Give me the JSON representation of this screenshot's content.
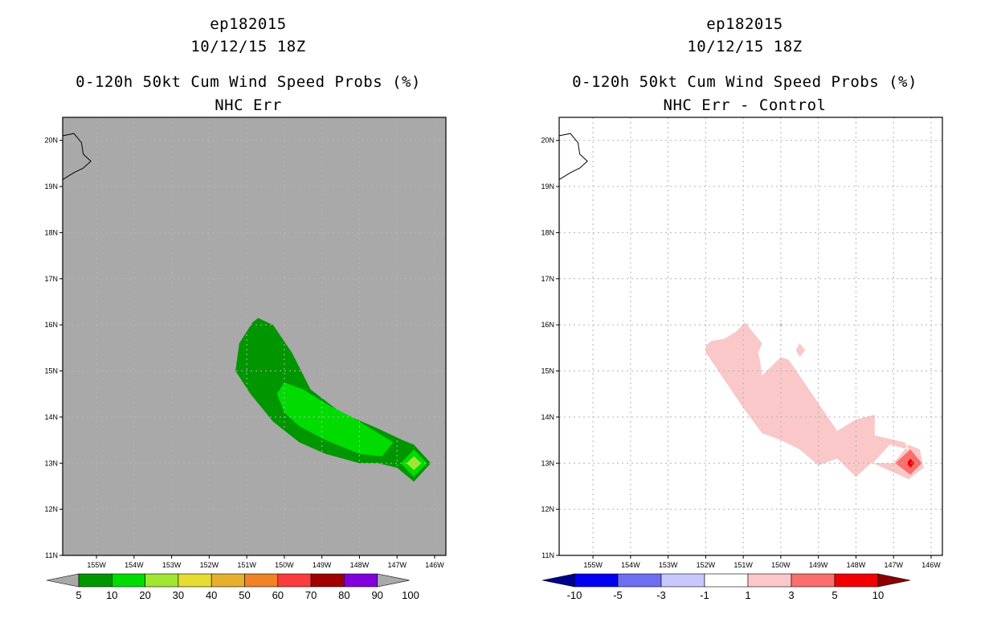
{
  "chart_data": [
    {
      "type": "contour-map",
      "title_lines": [
        "ep182015",
        "10/12/15 18Z",
        "0-120h 50kt Cum Wind Speed Probs (%)",
        "NHC Err"
      ],
      "x_ticks": [
        -156,
        -155,
        -154,
        -153,
        -152,
        -151,
        -150,
        -149,
        -148,
        -147,
        -146
      ],
      "x_tick_labels": [
        "",
        "155W",
        "154W",
        "153W",
        "152W",
        "151W",
        "150W",
        "149W",
        "148W",
        "147W",
        "146W"
      ],
      "y_ticks": [
        11,
        12,
        13,
        14,
        15,
        16,
        17,
        18,
        19,
        20
      ],
      "y_tick_labels": [
        "11N",
        "12N",
        "13N",
        "14N",
        "15N",
        "16N",
        "17N",
        "18N",
        "19N",
        "20N"
      ],
      "xlim": [
        -155.9,
        -145.7
      ],
      "ylim": [
        11.0,
        20.5
      ],
      "background_color": "#a9a9a9",
      "grid": true,
      "coastline": [
        [
          -155.9,
          20.1
        ],
        [
          -155.6,
          20.15
        ],
        [
          -155.4,
          19.95
        ],
        [
          -155.35,
          19.7
        ],
        [
          -155.15,
          19.55
        ],
        [
          -155.35,
          19.4
        ],
        [
          -155.6,
          19.3
        ],
        [
          -155.9,
          19.15
        ]
      ],
      "contours": [
        {
          "level": 5,
          "color": "#009600",
          "polygon": [
            [
              -151.3,
              15.0
            ],
            [
              -151.2,
              15.6
            ],
            [
              -150.85,
              16.05
            ],
            [
              -150.7,
              16.15
            ],
            [
              -150.3,
              16.0
            ],
            [
              -149.8,
              15.4
            ],
            [
              -149.3,
              14.6
            ],
            [
              -148.5,
              14.1
            ],
            [
              -147.5,
              13.75
            ],
            [
              -146.85,
              13.5
            ],
            [
              -146.55,
              13.4
            ],
            [
              -146.1,
              13.0
            ],
            [
              -146.55,
              12.6
            ],
            [
              -147.0,
              12.9
            ],
            [
              -147.5,
              13.0
            ],
            [
              -148.0,
              13.0
            ],
            [
              -148.9,
              13.2
            ],
            [
              -149.6,
              13.45
            ],
            [
              -150.3,
              13.9
            ],
            [
              -150.9,
              14.5
            ]
          ]
        },
        {
          "level": 10,
          "color": "#00dc00",
          "polygon": [
            [
              -150.2,
              14.5
            ],
            [
              -150.0,
              14.75
            ],
            [
              -149.5,
              14.6
            ],
            [
              -148.8,
              14.25
            ],
            [
              -148.2,
              14.0
            ],
            [
              -147.4,
              13.6
            ],
            [
              -147.1,
              13.45
            ],
            [
              -147.4,
              13.15
            ],
            [
              -148.0,
              13.2
            ],
            [
              -148.9,
              13.5
            ],
            [
              -149.6,
              13.8
            ],
            [
              -150.0,
              14.1
            ]
          ]
        },
        {
          "level": 5,
          "color": "#00dc00",
          "polygon": [
            [
              -146.9,
              13.0
            ],
            [
              -146.55,
              13.3
            ],
            [
              -146.2,
              13.0
            ],
            [
              -146.55,
              12.7
            ]
          ]
        },
        {
          "level": 20,
          "color": "#a0e632",
          "polygon": [
            [
              -146.75,
              13.0
            ],
            [
              -146.55,
              13.15
            ],
            [
              -146.35,
              13.0
            ],
            [
              -146.55,
              12.85
            ]
          ]
        }
      ],
      "colorbar": {
        "levels": [
          "5",
          "10",
          "20",
          "30",
          "40",
          "50",
          "60",
          "70",
          "80",
          "90",
          "100"
        ],
        "colors": [
          "#009600",
          "#00dc00",
          "#a0e632",
          "#e6dc32",
          "#e6af2d",
          "#f08228",
          "#fa3c3c",
          "#a00000",
          "#8200dc"
        ],
        "extend_color": "#a9a9a9"
      }
    },
    {
      "type": "contour-map",
      "title_lines": [
        "ep182015",
        "10/12/15 18Z",
        "0-120h 50kt Cum Wind Speed Probs (%)",
        "NHC Err - Control"
      ],
      "x_ticks": [
        -156,
        -155,
        -154,
        -153,
        -152,
        -151,
        -150,
        -149,
        -148,
        -147,
        -146
      ],
      "x_tick_labels": [
        "",
        "155W",
        "154W",
        "153W",
        "152W",
        "151W",
        "150W",
        "149W",
        "148W",
        "147W",
        "146W"
      ],
      "y_ticks": [
        11,
        12,
        13,
        14,
        15,
        16,
        17,
        18,
        19,
        20
      ],
      "y_tick_labels": [
        "11N",
        "12N",
        "13N",
        "14N",
        "15N",
        "16N",
        "17N",
        "18N",
        "19N",
        "20N"
      ],
      "xlim": [
        -155.9,
        -145.7
      ],
      "ylim": [
        11.0,
        20.5
      ],
      "background_color": "#ffffff",
      "grid": true,
      "coastline": [
        [
          -155.9,
          20.1
        ],
        [
          -155.6,
          20.15
        ],
        [
          -155.4,
          19.95
        ],
        [
          -155.35,
          19.7
        ],
        [
          -155.15,
          19.55
        ],
        [
          -155.35,
          19.4
        ],
        [
          -155.6,
          19.3
        ],
        [
          -155.9,
          19.15
        ]
      ],
      "contours": [
        {
          "level": 1,
          "color": "#fac8c8",
          "polygon": [
            [
              -152.0,
              15.55
            ],
            [
              -152.0,
              15.4
            ],
            [
              -151.5,
              14.8
            ],
            [
              -151.0,
              14.2
            ],
            [
              -150.5,
              13.65
            ],
            [
              -150.0,
              13.5
            ],
            [
              -149.5,
              13.3
            ],
            [
              -149.0,
              12.95
            ],
            [
              -148.5,
              13.1
            ],
            [
              -148.0,
              12.7
            ],
            [
              -147.6,
              13.0
            ],
            [
              -147.0,
              13.0
            ],
            [
              -146.6,
              13.4
            ],
            [
              -146.3,
              13.3
            ],
            [
              -146.2,
              12.9
            ],
            [
              -146.6,
              12.65
            ],
            [
              -147.0,
              12.8
            ],
            [
              -147.55,
              13.0
            ],
            [
              -147.1,
              13.4
            ],
            [
              -146.6,
              13.3
            ],
            [
              -146.7,
              13.45
            ],
            [
              -147.5,
              13.6
            ],
            [
              -147.5,
              14.05
            ],
            [
              -148.0,
              13.95
            ],
            [
              -148.5,
              13.7
            ],
            [
              -149.0,
              14.3
            ],
            [
              -149.5,
              14.9
            ],
            [
              -149.8,
              15.25
            ],
            [
              -150.0,
              15.3
            ],
            [
              -150.5,
              14.9
            ],
            [
              -150.55,
              15.2
            ],
            [
              -150.6,
              15.4
            ],
            [
              -150.5,
              15.6
            ],
            [
              -150.95,
              16.05
            ],
            [
              -151.2,
              15.85
            ],
            [
              -151.5,
              15.7
            ],
            [
              -151.85,
              15.65
            ]
          ]
        },
        {
          "level": 1,
          "color": "#fac8c8",
          "polygon": [
            [
              -149.6,
              15.45
            ],
            [
              -149.5,
              15.6
            ],
            [
              -149.35,
              15.45
            ],
            [
              -149.5,
              15.3
            ]
          ]
        },
        {
          "level": 1,
          "color": "#fac8c8",
          "polygon": [
            [
              -150.05,
              16.0
            ],
            [
              -150.0,
              16.05
            ],
            [
              -149.95,
              16.0
            ],
            [
              -150.0,
              15.95
            ]
          ]
        },
        {
          "level": 3,
          "color": "#fa6e6e",
          "polygon": [
            [
              -146.95,
              13.0
            ],
            [
              -146.55,
              13.3
            ],
            [
              -146.25,
              13.0
            ],
            [
              -146.55,
              12.75
            ]
          ]
        },
        {
          "level": 5,
          "color": "#f00000",
          "polygon": [
            [
              -146.65,
              13.0
            ],
            [
              -146.55,
              13.1
            ],
            [
              -146.45,
              13.0
            ],
            [
              -146.55,
              12.9
            ]
          ]
        }
      ],
      "colorbar": {
        "levels": [
          "-10",
          "-5",
          "-3",
          "-1",
          "1",
          "3",
          "5",
          "10"
        ],
        "colors": [
          "#0000f0",
          "#6e6ef0",
          "#c8c8fa",
          "#ffffff",
          "#fac8c8",
          "#fa6e6e",
          "#f00000"
        ],
        "extend_low_color": "#00008c",
        "extend_high_color": "#8c0000"
      }
    }
  ]
}
